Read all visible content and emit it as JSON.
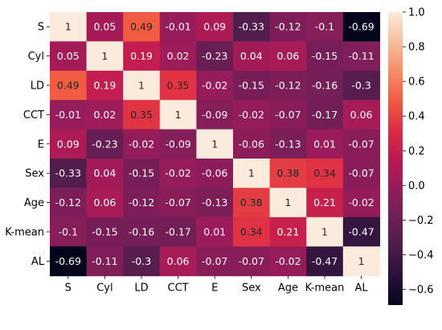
{
  "chart_data": {
    "type": "heatmap",
    "title": "",
    "xlabel": "",
    "ylabel": "",
    "labels": [
      "S",
      "Cyl",
      "LD",
      "CCT",
      "E",
      "Sex",
      "Age",
      "K-mean",
      "AL"
    ],
    "matrix": [
      [
        1,
        0.05,
        0.49,
        -0.01,
        0.09,
        -0.33,
        -0.12,
        -0.1,
        -0.69
      ],
      [
        0.05,
        1,
        0.19,
        0.02,
        -0.23,
        0.04,
        0.06,
        -0.15,
        -0.11
      ],
      [
        0.49,
        0.19,
        1,
        0.35,
        -0.02,
        -0.15,
        -0.12,
        -0.16,
        -0.3
      ],
      [
        -0.01,
        0.02,
        0.35,
        1,
        -0.09,
        -0.02,
        -0.07,
        -0.17,
        0.06
      ],
      [
        0.09,
        -0.23,
        -0.02,
        -0.09,
        1,
        -0.06,
        -0.13,
        0.01,
        -0.07
      ],
      [
        -0.33,
        0.04,
        -0.15,
        -0.02,
        -0.06,
        1,
        0.38,
        0.34,
        -0.07
      ],
      [
        -0.12,
        0.06,
        -0.12,
        -0.07,
        -0.13,
        0.38,
        1,
        0.21,
        -0.02
      ],
      [
        -0.1,
        -0.15,
        -0.16,
        -0.17,
        0.01,
        0.34,
        0.21,
        1,
        -0.47
      ],
      [
        -0.69,
        -0.11,
        -0.3,
        0.06,
        -0.07,
        -0.07,
        -0.02,
        -0.47,
        1
      ]
    ],
    "value_range": [
      -0.69,
      1
    ],
    "colormap": "rocket",
    "colorbar_ticks": [
      1.0,
      0.8,
      0.6,
      0.4,
      0.2,
      0.0,
      -0.2,
      -0.4,
      -0.6
    ],
    "colorbar_tick_labels": [
      "1.0",
      "0.8",
      "0.6",
      "0.4",
      "0.2",
      "0.0",
      "−0.2",
      "−0.4",
      "−0.6"
    ],
    "legend": "right",
    "grid": false
  }
}
